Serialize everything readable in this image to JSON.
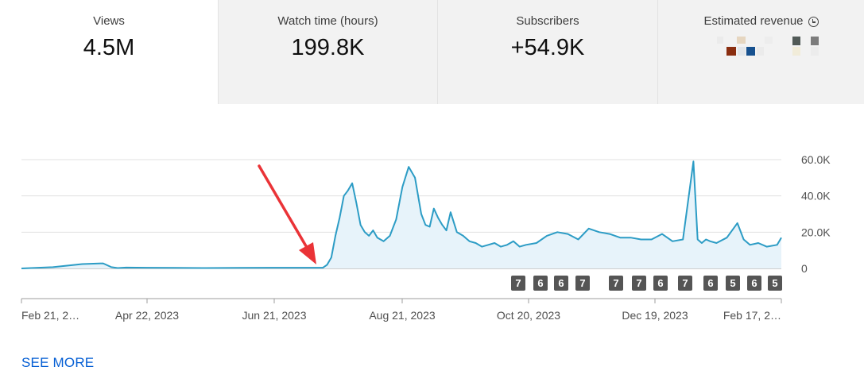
{
  "metrics": [
    {
      "label": "Views",
      "value": "4.5M"
    },
    {
      "label": "Watch time (hours)",
      "value": "199.8K"
    },
    {
      "label": "Subscribers",
      "value": "+54.9K"
    },
    {
      "label": "Estimated revenue",
      "value": ""
    }
  ],
  "revenue_icon": "clock-icon",
  "see_more": "SEE MORE",
  "colors": {
    "line": "#2c9cc5",
    "fill": "#e7f3fa",
    "grid": "#e0e0e0",
    "badge": "#555555",
    "arrow": "#ea3337",
    "link": "#065fd4"
  },
  "chart_data": {
    "type": "area",
    "x_tick_labels": [
      "Feb 21, 2…",
      "Apr 22, 2023",
      "Jun 21, 2023",
      "Aug 21, 2023",
      "Oct 20, 2023",
      "Dec 19, 2023",
      "Feb 17, 2…"
    ],
    "y_tick_labels": [
      "60.0K",
      "40.0K",
      "20.0K",
      "0"
    ],
    "ylim": [
      0,
      60000
    ],
    "grid": true,
    "series": [
      {
        "x": [
          "2023-02-21",
          "2023-03-08",
          "2023-03-22",
          "2023-04-01",
          "2023-04-05",
          "2023-04-08",
          "2023-04-12",
          "2023-04-22",
          "2023-05-05",
          "2023-05-20",
          "2023-06-05",
          "2023-06-21",
          "2023-07-05",
          "2023-07-15",
          "2023-07-17",
          "2023-07-19",
          "2023-07-21",
          "2023-07-23",
          "2023-07-25",
          "2023-07-27",
          "2023-07-29",
          "2023-07-31",
          "2023-08-02",
          "2023-08-04",
          "2023-08-06",
          "2023-08-08",
          "2023-08-10",
          "2023-08-13",
          "2023-08-16",
          "2023-08-19",
          "2023-08-22",
          "2023-08-25",
          "2023-08-28",
          "2023-08-31",
          "2023-09-02",
          "2023-09-04",
          "2023-09-06",
          "2023-09-08",
          "2023-09-10",
          "2023-09-12",
          "2023-09-14",
          "2023-09-17",
          "2023-09-20",
          "2023-09-23",
          "2023-09-26",
          "2023-09-29",
          "2023-10-02",
          "2023-10-05",
          "2023-10-08",
          "2023-10-11",
          "2023-10-14",
          "2023-10-17",
          "2023-10-20",
          "2023-10-25",
          "2023-10-30",
          "2023-11-04",
          "2023-11-09",
          "2023-11-14",
          "2023-11-19",
          "2023-11-24",
          "2023-11-29",
          "2023-12-04",
          "2023-12-09",
          "2023-12-14",
          "2023-12-19",
          "2023-12-24",
          "2023-12-29",
          "2024-01-03",
          "2024-01-08",
          "2024-01-10",
          "2024-01-12",
          "2024-01-14",
          "2024-01-16",
          "2024-01-19",
          "2024-01-24",
          "2024-01-29",
          "2024-02-01",
          "2024-02-04",
          "2024-02-08",
          "2024-02-12",
          "2024-02-17",
          "2024-02-19"
        ],
        "values": [
          0,
          700,
          2400,
          2800,
          700,
          200,
          500,
          400,
          300,
          200,
          300,
          400,
          400,
          400,
          2000,
          6000,
          18000,
          28000,
          40000,
          43000,
          47000,
          36000,
          24000,
          20000,
          18000,
          21000,
          17000,
          15000,
          18000,
          27000,
          45000,
          56000,
          50000,
          30000,
          24000,
          23000,
          33000,
          28000,
          24000,
          21000,
          31000,
          20000,
          18000,
          15000,
          14000,
          12000,
          13000,
          14000,
          12000,
          13000,
          15000,
          12000,
          13000,
          14000,
          18000,
          20000,
          19000,
          16000,
          22000,
          20000,
          19000,
          17000,
          17000,
          16000,
          16000,
          19000,
          15000,
          16000,
          59000,
          16000,
          14000,
          16000,
          15000,
          14000,
          17000,
          25000,
          16000,
          13000,
          14000,
          12000,
          13000,
          17000
        ]
      }
    ],
    "badges": [
      "7",
      "6",
      "6",
      "7",
      "7",
      "7",
      "6",
      "7",
      "6",
      "5",
      "6",
      "5"
    ],
    "annotations": [
      "red arrow pointing at the start of the rise"
    ]
  }
}
